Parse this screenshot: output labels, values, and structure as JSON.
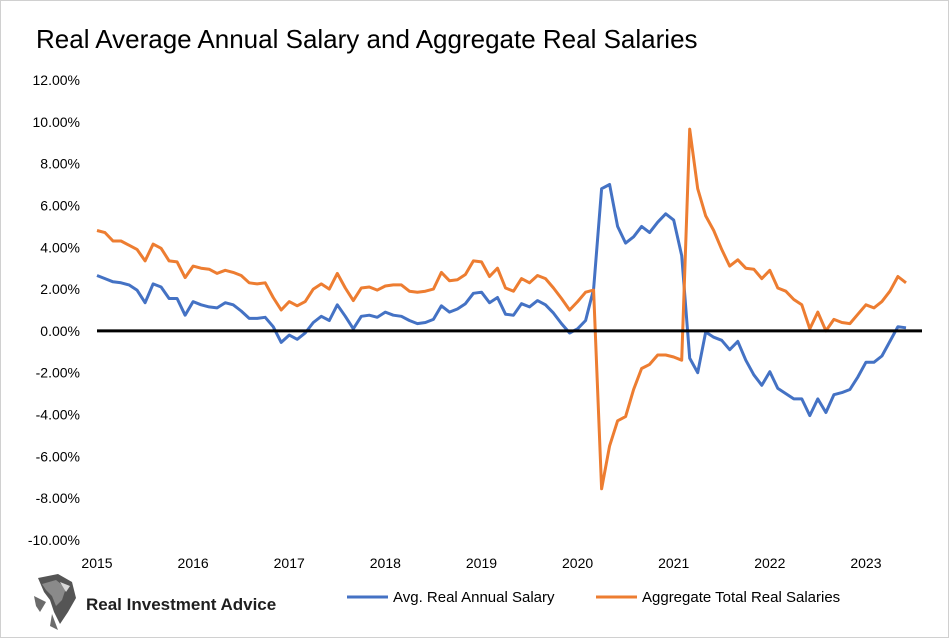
{
  "chart_data": {
    "type": "line",
    "title": "Real Average Annual Salary and Aggregate Real Salaries",
    "xlabel": "",
    "ylabel": "",
    "x_ticks": [
      "2015",
      "2016",
      "2017",
      "2018",
      "2019",
      "2020",
      "2021",
      "2022",
      "2023"
    ],
    "y_ticks": [
      "12.00%",
      "10.00%",
      "8.00%",
      "6.00%",
      "4.00%",
      "2.00%",
      "0.00%",
      "-2.00%",
      "-4.00%",
      "-6.00%",
      "-8.00%",
      "-10.00%"
    ],
    "ylim": [
      -10,
      12
    ],
    "xlim": [
      2015.0,
      2023.5833
    ],
    "legend_position": "bottom",
    "grid": false,
    "zero_line": true,
    "series": [
      {
        "name": "Avg. Real Annual Salary",
        "color": "#4472C4",
        "start": 2015.0,
        "step": 0.08333,
        "values": [
          2.65,
          2.5,
          2.35,
          2.3,
          2.2,
          1.95,
          1.35,
          2.25,
          2.1,
          1.55,
          1.55,
          0.75,
          1.4,
          1.25,
          1.15,
          1.1,
          1.35,
          1.25,
          0.95,
          0.6,
          0.6,
          0.65,
          0.2,
          -0.55,
          -0.2,
          -0.4,
          -0.1,
          0.4,
          0.7,
          0.5,
          1.25,
          0.7,
          0.1,
          0.7,
          0.75,
          0.65,
          0.9,
          0.75,
          0.7,
          0.5,
          0.35,
          0.4,
          0.55,
          1.2,
          0.9,
          1.05,
          1.3,
          1.8,
          1.85,
          1.35,
          1.6,
          0.8,
          0.75,
          1.3,
          1.15,
          1.45,
          1.25,
          0.85,
          0.35,
          -0.1,
          0.1,
          0.5,
          2.0,
          6.8,
          7.0,
          5.0,
          4.2,
          4.5,
          5.0,
          4.7,
          5.2,
          5.6,
          5.3,
          3.6,
          -1.3,
          -2.0,
          -0.05,
          -0.3,
          -0.45,
          -0.9,
          -0.5,
          -1.4,
          -2.1,
          -2.6,
          -1.95,
          -2.75,
          -3.0,
          -3.25,
          -3.25,
          -4.05,
          -3.25,
          -3.9,
          -3.05,
          -2.95,
          -2.8,
          -2.2,
          -1.5,
          -1.5,
          -1.2,
          -0.5,
          0.2,
          0.15
        ]
      },
      {
        "name": "Aggregate Total Real Salaries",
        "color": "#ED7D31",
        "start": 2015.0,
        "step": 0.08333,
        "values": [
          4.8,
          4.7,
          4.3,
          4.3,
          4.1,
          3.9,
          3.35,
          4.15,
          3.95,
          3.35,
          3.3,
          2.55,
          3.1,
          3.0,
          2.95,
          2.75,
          2.9,
          2.8,
          2.65,
          2.3,
          2.25,
          2.3,
          1.6,
          1.0,
          1.4,
          1.2,
          1.4,
          2.0,
          2.25,
          2.0,
          2.75,
          2.05,
          1.45,
          2.05,
          2.1,
          1.95,
          2.15,
          2.2,
          2.2,
          1.9,
          1.85,
          1.9,
          2.0,
          2.8,
          2.4,
          2.45,
          2.7,
          3.35,
          3.3,
          2.6,
          3.0,
          2.05,
          1.9,
          2.5,
          2.3,
          2.65,
          2.5,
          2.05,
          1.55,
          1.0,
          1.4,
          1.85,
          1.95,
          -7.55,
          -5.5,
          -4.3,
          -4.1,
          -2.8,
          -1.8,
          -1.6,
          -1.15,
          -1.15,
          -1.25,
          -1.4,
          9.65,
          6.8,
          5.5,
          4.8,
          3.9,
          3.1,
          3.4,
          3.0,
          2.95,
          2.5,
          2.9,
          2.05,
          1.9,
          1.5,
          1.25,
          0.1,
          0.9,
          0.0,
          0.55,
          0.4,
          0.35,
          0.8,
          1.25,
          1.1,
          1.4,
          1.9,
          2.6,
          2.3
        ]
      }
    ]
  },
  "logo": {
    "text": "Real Investment Advice",
    "icon": "eagle-icon"
  }
}
